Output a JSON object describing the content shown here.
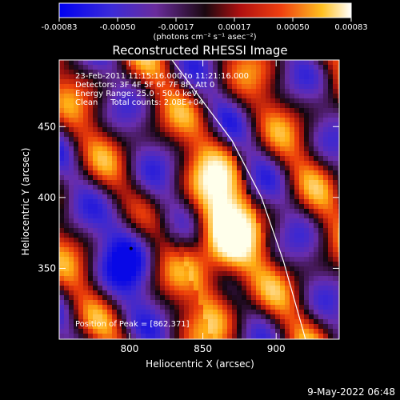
{
  "chart_data": {
    "type": "heatmap",
    "title": "Reconstructed RHESSI Image",
    "xlabel": "Heliocentric X (arcsec)",
    "ylabel": "Heliocentric Y (arcsec)",
    "xlim": [
      752,
      943
    ],
    "ylim": [
      300,
      497
    ],
    "x_ticks": [
      800,
      850,
      900
    ],
    "y_ticks": [
      350,
      400,
      450
    ],
    "colorbar": {
      "ticks": [
        "-0.00083",
        "-0.00050",
        "-0.00017",
        "0.00017",
        "0.00050",
        "0.00083"
      ],
      "range": [
        -0.00083,
        0.00083
      ],
      "units_label": "(photons cm⁻² s⁻¹ asec⁻²)"
    },
    "annotations": [
      "23-Feb-2011 11:15:16.000 to 11:21:16.000",
      "Detectors: 3F 4F 5F 6F 7F 8F, Att 0",
      "Energy Range: 25.0 - 50.0 keV",
      "Clean     Total counts: 2.08E+04"
    ],
    "peak_label": "Position of Peak = [862,371]",
    "peak": [
      862,
      371
    ],
    "min_marker": [
      801,
      364
    ],
    "limb_curve": [
      [
        829,
        497
      ],
      [
        870,
        440
      ],
      [
        890,
        400
      ],
      [
        905,
        355
      ],
      [
        920,
        300
      ]
    ],
    "colors": {
      "background": "#000000",
      "text": "#ffffff"
    }
  },
  "footer": {
    "date": "9-May-2022 06:48"
  }
}
